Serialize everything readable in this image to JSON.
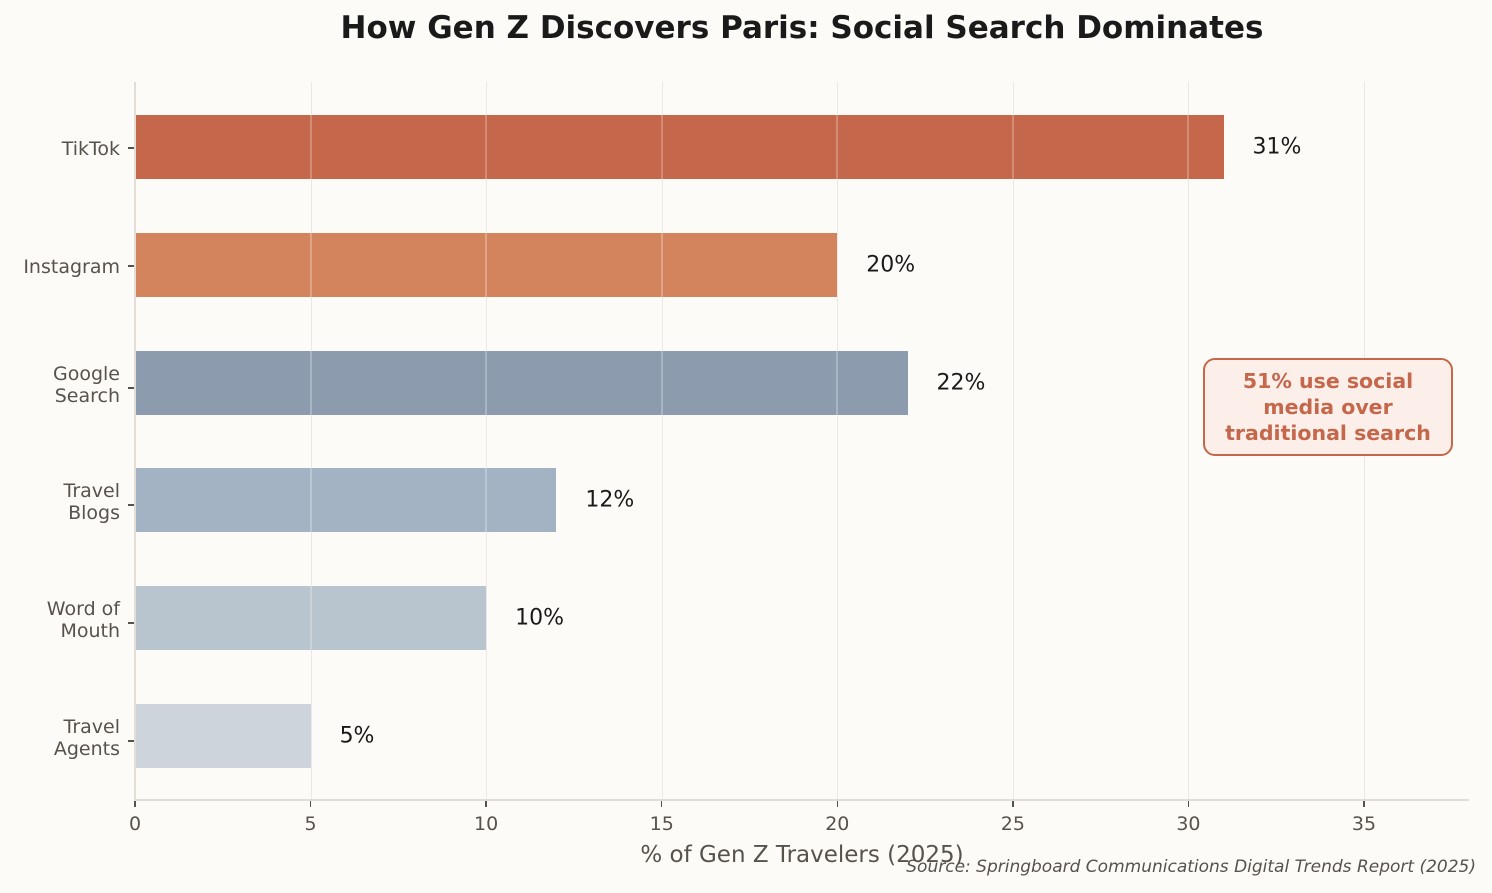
{
  "chart_data": {
    "type": "bar",
    "orientation": "horizontal",
    "title": "How Gen Z Discovers Paris: Social Search Dominates",
    "xlabel": "% of Gen Z Travelers (2025)",
    "ylabel": "",
    "categories": [
      "TikTok",
      "Instagram",
      "Google Search",
      "Travel Blogs",
      "Word of Mouth",
      "Travel Agents"
    ],
    "category_labels_display": [
      "TikTok",
      "Instagram",
      "Google\nSearch",
      "Travel\nBlogs",
      "Word of\nMouth",
      "Travel\nAgents"
    ],
    "values": [
      31,
      20,
      22,
      12,
      10,
      5
    ],
    "value_labels": [
      "31%",
      "20%",
      "22%",
      "12%",
      "10%",
      "5%"
    ],
    "colors": [
      "#c4674a",
      "#d4845c",
      "#8c9cae",
      "#a3b3c3",
      "#b8c5ce",
      "#cdd4dc"
    ],
    "xlim": [
      0,
      38
    ],
    "xticks": [
      0,
      5,
      10,
      15,
      20,
      25,
      30,
      35
    ],
    "grid": "vertical",
    "annotation": "51% use social\nmedia over\ntraditional search",
    "source": "Source: Springboard Communications Digital Trends Report (2025)"
  },
  "title": "How Gen Z Discovers Paris: Social Search Dominates",
  "xlabel": "% of Gen Z Travelers (2025)",
  "annotation": "51% use social\nmedia over\ntraditional search",
  "source": "Source: Springboard Communications Digital Trends Report (2025)",
  "xticks": [
    "0",
    "5",
    "10",
    "15",
    "20",
    "25",
    "30",
    "35"
  ],
  "bars": [
    {
      "label": "TikTok",
      "value_label": "31%"
    },
    {
      "label": "Instagram",
      "value_label": "20%"
    },
    {
      "label": "Google\nSearch",
      "value_label": "22%"
    },
    {
      "label": "Travel\nBlogs",
      "value_label": "12%"
    },
    {
      "label": "Word of\nMouth",
      "value_label": "10%"
    },
    {
      "label": "Travel\nAgents",
      "value_label": "5%"
    }
  ]
}
